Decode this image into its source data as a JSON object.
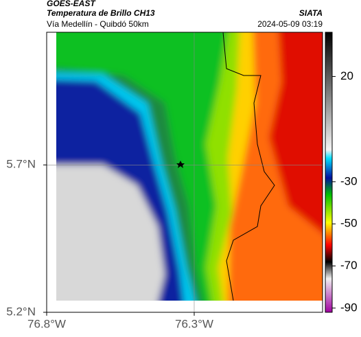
{
  "header": {
    "title": "GOES-EAST",
    "subtitle": "Temperatura de Brillo CH13",
    "source": "SIATA",
    "route": "Vía Medellín - Quibdó 50km",
    "timestamp": "2024-05-09 03:19"
  },
  "map": {
    "xlim": [
      -76.8,
      -75.865
    ],
    "ylim": [
      5.2,
      6.15
    ],
    "xticks": [
      {
        "value": -76.8,
        "label": "76.8°W"
      },
      {
        "value": -76.3,
        "label": "76.3°W"
      }
    ],
    "yticks": [
      {
        "value": 5.2,
        "label": "5.2°N"
      },
      {
        "value": 5.7,
        "label": "5.7°N"
      }
    ],
    "grid": true
  },
  "colorbar": {
    "lim": [
      -92,
      41
    ],
    "ticks": [
      20,
      -30,
      -50,
      -70,
      -90
    ]
  }
}
